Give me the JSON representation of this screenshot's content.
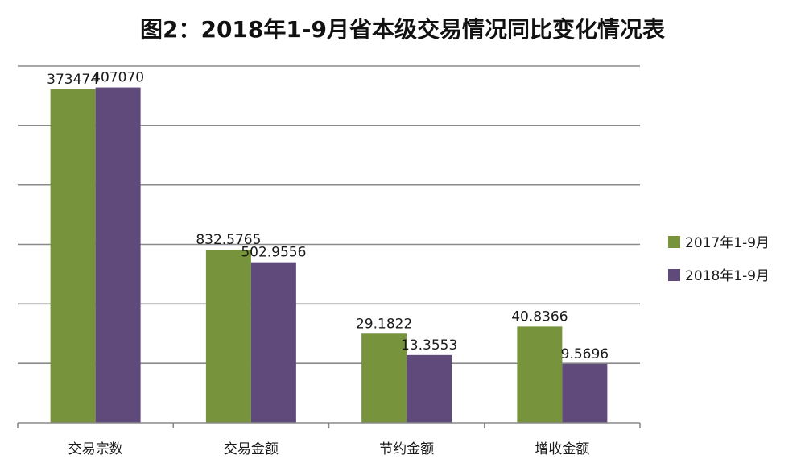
{
  "chart_data": {
    "type": "bar",
    "title": "图2：2018年1-9月省本级交易情况同比变化情况表",
    "categories": [
      "交易宗数",
      "交易金额",
      "节约金额",
      "增收金额"
    ],
    "series": [
      {
        "name": "2017年1-9月",
        "color": "#77933C",
        "values": [
          373474,
          832.5765,
          29.1822,
          40.8366
        ],
        "labels": [
          "373474",
          "832.5765",
          "29.1822",
          "40.8366"
        ],
        "display_heights": [
          0.935,
          0.485,
          0.25,
          0.27
        ]
      },
      {
        "name": "2018年1-9月",
        "color": "#604A7B",
        "values": [
          407070,
          502.9556,
          13.3553,
          9.5696
        ],
        "labels": [
          "407070",
          "502.9556",
          "13.3553",
          "9.5696"
        ],
        "display_heights": [
          0.94,
          0.45,
          0.19,
          0.165
        ]
      }
    ],
    "grid": true,
    "legend": "right"
  }
}
